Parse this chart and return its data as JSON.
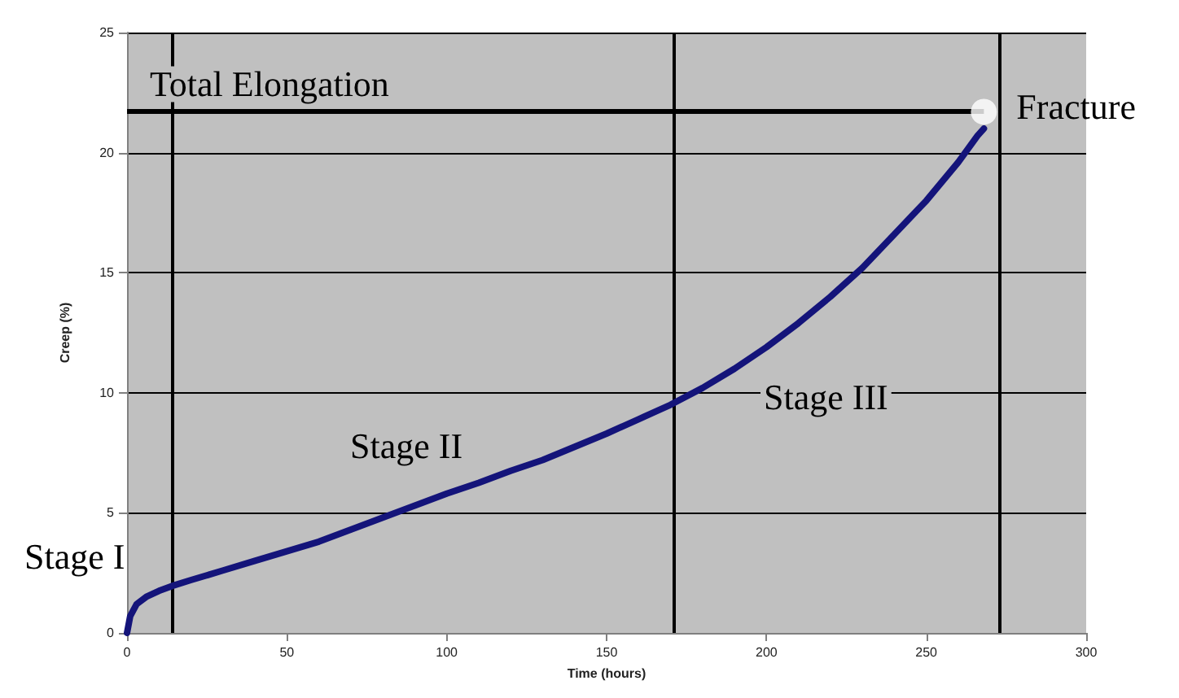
{
  "chart_data": {
    "type": "line",
    "xlabel": "Time (hours)",
    "ylabel": "Creep (%)",
    "xlim": [
      0,
      300
    ],
    "xticks": [
      0,
      50,
      100,
      150,
      200,
      250,
      300
    ],
    "ylim": [
      0,
      25
    ],
    "yticks": [
      0,
      5,
      10,
      15,
      20,
      25
    ],
    "grid": "y",
    "marker": "none",
    "line_style": "solid",
    "series": [
      {
        "color": "#14147a",
        "x": [
          0,
          1,
          3,
          6,
          10,
          14,
          20,
          30,
          40,
          50,
          60,
          70,
          80,
          90,
          100,
          110,
          120,
          130,
          140,
          150,
          160,
          170,
          180,
          190,
          200,
          210,
          220,
          230,
          240,
          250,
          260,
          266,
          268
        ],
        "values": [
          0,
          0.7,
          1.2,
          1.5,
          1.75,
          1.95,
          2.2,
          2.6,
          3.0,
          3.4,
          3.8,
          4.3,
          4.8,
          5.3,
          5.8,
          6.25,
          6.75,
          7.2,
          7.75,
          8.3,
          8.9,
          9.5,
          10.2,
          11.0,
          11.9,
          12.9,
          14.0,
          15.2,
          16.6,
          18.0,
          19.6,
          20.7,
          21.0
        ]
      },
      {
        "type": "scatter",
        "marker": "circle",
        "color": "#ffffff",
        "x": [
          268
        ],
        "values": [
          21.7
        ]
      }
    ],
    "ref_lines": [
      {
        "axis": "y",
        "value": 21.7,
        "label": "Total Elongation",
        "color": "#000000"
      },
      {
        "axis": "x",
        "value": 14,
        "color": "#000000"
      },
      {
        "axis": "x",
        "value": 171,
        "color": "#000000"
      },
      {
        "axis": "x",
        "value": 273,
        "color": "#000000"
      }
    ],
    "annotations": [
      {
        "text": "Fracture",
        "x": 268,
        "y": 21.7
      },
      "Stage I",
      "Stage II",
      "Stage III"
    ]
  }
}
